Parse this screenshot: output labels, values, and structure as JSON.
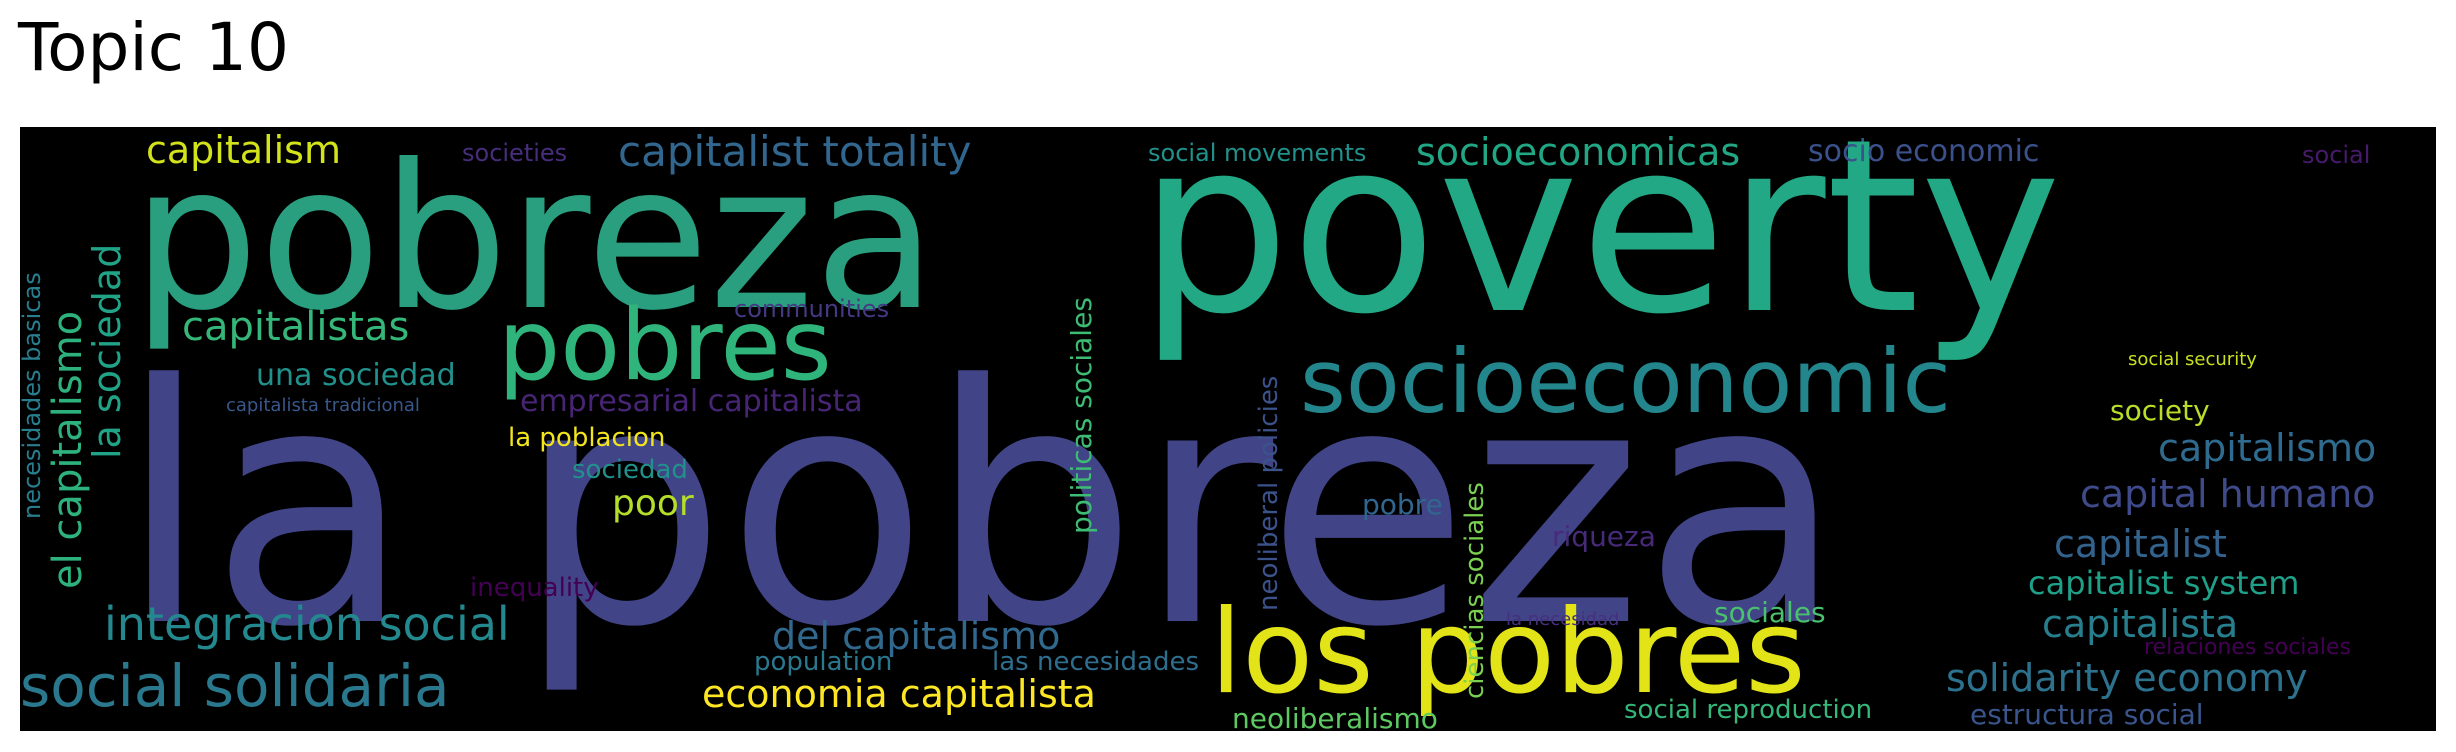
{
  "title": "Topic 10",
  "words": [
    {
      "text": "la pobreza",
      "color": "#414487"
    },
    {
      "text": "poverty",
      "color": "#22a884"
    },
    {
      "text": "pobreza",
      "color": "#2a9f7f"
    },
    {
      "text": "los pobres",
      "color": "#e3e418"
    },
    {
      "text": "socioeconomic",
      "color": "#23868d"
    },
    {
      "text": "pobres",
      "color": "#2fb47c"
    },
    {
      "text": "social solidaria",
      "color": "#2a788e"
    },
    {
      "text": "integracion social",
      "color": "#23898e"
    },
    {
      "text": "capitalist totality",
      "color": "#31668e"
    },
    {
      "text": "capitalism",
      "color": "#d2e21b"
    },
    {
      "text": "socioeconomicas",
      "color": "#22a785"
    },
    {
      "text": "capitalistas",
      "color": "#35b779"
    },
    {
      "text": "economia capitalista",
      "color": "#fde725"
    },
    {
      "text": "del capitalismo",
      "color": "#31688e"
    },
    {
      "text": "solidarity economy",
      "color": "#2c728e"
    },
    {
      "text": "capital humano",
      "color": "#3e4a89"
    },
    {
      "text": "capitalismo",
      "color": "#2f6b8e"
    },
    {
      "text": "capitalist",
      "color": "#33628d"
    },
    {
      "text": "capitalista",
      "color": "#277f8e"
    },
    {
      "text": "capitalist system",
      "color": "#1fa088"
    },
    {
      "text": "el capitalismo",
      "color": "#2db27d"
    },
    {
      "text": "la sociedad",
      "color": "#20a386"
    },
    {
      "text": "una sociedad",
      "color": "#21918c"
    },
    {
      "text": "empresarial capitalista",
      "color": "#482475"
    },
    {
      "text": "poor",
      "color": "#b5de2b"
    },
    {
      "text": "social movements",
      "color": "#21918c"
    },
    {
      "text": "socio economic",
      "color": "#3b518b"
    },
    {
      "text": "societies",
      "color": "#472d7b"
    },
    {
      "text": "communities",
      "color": "#443a83"
    },
    {
      "text": "social",
      "color": "#481a6c"
    },
    {
      "text": "society",
      "color": "#b8de29"
    },
    {
      "text": "social security",
      "color": "#c8e020"
    },
    {
      "text": "pobre",
      "color": "#31668e"
    },
    {
      "text": "riqueza",
      "color": "#472a7a"
    },
    {
      "text": "la poblacion",
      "color": "#f1e51d"
    },
    {
      "text": "sociedad",
      "color": "#21918c"
    },
    {
      "text": "inequality",
      "color": "#440154"
    },
    {
      "text": "capitalista tradicional",
      "color": "#38588c"
    },
    {
      "text": "necesidades basicas",
      "color": "#287d8e"
    },
    {
      "text": "politicas sociales",
      "color": "#3dbc74"
    },
    {
      "text": "neoliberal policies",
      "color": "#3b528b"
    },
    {
      "text": "ciencias sociales",
      "color": "#7ad151"
    },
    {
      "text": "population",
      "color": "#2a788e"
    },
    {
      "text": "las necesidades",
      "color": "#2e6e8e"
    },
    {
      "text": "neoliberalismo",
      "color": "#5ec962"
    },
    {
      "text": "sociales",
      "color": "#4ac16d"
    },
    {
      "text": "social reproduction",
      "color": "#35b779"
    },
    {
      "text": "estructura social",
      "color": "#39558c"
    },
    {
      "text": "la necesidad",
      "color": "#46307e"
    },
    {
      "text": "relaciones sociales",
      "color": "#440154"
    }
  ]
}
